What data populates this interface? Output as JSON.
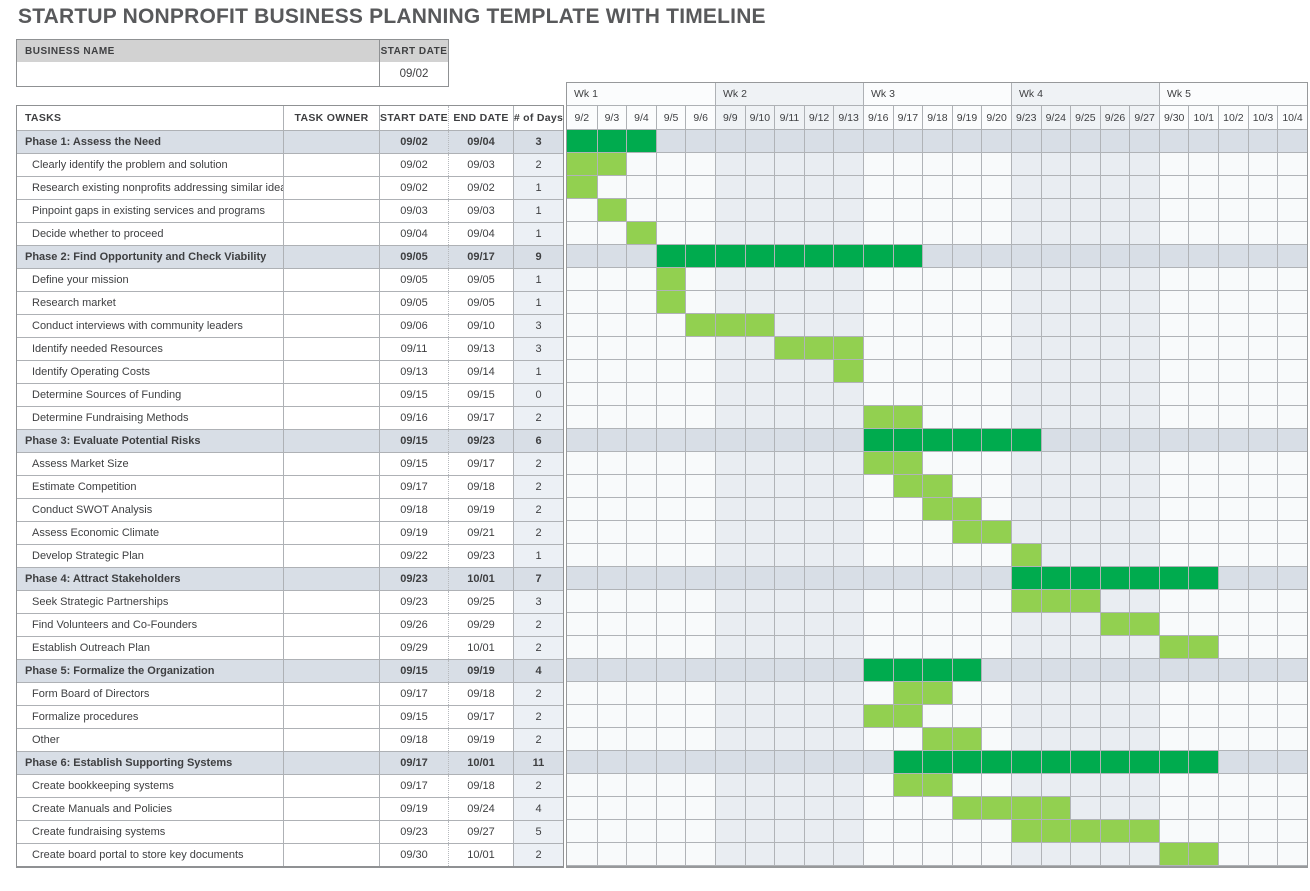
{
  "title": "STARTUP NONPROFIT BUSINESS PLANNING TEMPLATE WITH TIMELINE",
  "business": {
    "name_label": "BUSINESS NAME",
    "name_value": "",
    "start_date_label": "START DATE",
    "start_date_value": "09/02"
  },
  "columns": {
    "tasks": "TASKS",
    "owner": "TASK OWNER",
    "start": "START DATE",
    "end": "END DATE",
    "days": "# of Days"
  },
  "colors": {
    "phase_bar": "#00AB4E",
    "task_bar": "#92D050",
    "phase_row_bg": "#D8DEE6",
    "alt_week_bg": "#E9EDF2",
    "plain_week_bg": "#F8FAFB"
  },
  "gantt": {
    "weeks": [
      {
        "label": "Wk 1",
        "days": [
          "9/2",
          "9/3",
          "9/4",
          "9/5",
          "9/6"
        ]
      },
      {
        "label": "Wk 2",
        "days": [
          "9/9",
          "9/10",
          "9/11",
          "9/12",
          "9/13"
        ]
      },
      {
        "label": "Wk 3",
        "days": [
          "9/16",
          "9/17",
          "9/18",
          "9/19",
          "9/20"
        ]
      },
      {
        "label": "Wk 4",
        "days": [
          "9/23",
          "9/24",
          "9/25",
          "9/26",
          "9/27"
        ]
      },
      {
        "label": "Wk 5",
        "days": [
          "9/30",
          "10/1",
          "10/2",
          "10/3",
          "10/4"
        ]
      }
    ]
  },
  "rows": [
    {
      "type": "phase",
      "task": "Phase 1: Assess the Need",
      "owner": "",
      "start": "09/02",
      "end": "09/04",
      "days": "3",
      "bar": [
        0,
        3
      ]
    },
    {
      "type": "task",
      "task": "Clearly identify the problem and solution",
      "owner": "",
      "start": "09/02",
      "end": "09/03",
      "days": "2",
      "bar": [
        0,
        2
      ]
    },
    {
      "type": "task",
      "task": "Research existing nonprofits addressing similar idea",
      "owner": "",
      "start": "09/02",
      "end": "09/02",
      "days": "1",
      "bar": [
        0,
        1
      ]
    },
    {
      "type": "task",
      "task": "Pinpoint gaps in existing services and programs",
      "owner": "",
      "start": "09/03",
      "end": "09/03",
      "days": "1",
      "bar": [
        1,
        1
      ]
    },
    {
      "type": "task",
      "task": "Decide whether to proceed",
      "owner": "",
      "start": "09/04",
      "end": "09/04",
      "days": "1",
      "bar": [
        2,
        1
      ]
    },
    {
      "type": "phase",
      "task": "Phase 2: Find Opportunity and Check Viability",
      "owner": "",
      "start": "09/05",
      "end": "09/17",
      "days": "9",
      "bar": [
        3,
        9
      ]
    },
    {
      "type": "task",
      "task": "Define your mission",
      "owner": "",
      "start": "09/05",
      "end": "09/05",
      "days": "1",
      "bar": [
        3,
        1
      ]
    },
    {
      "type": "task",
      "task": "Research market",
      "owner": "",
      "start": "09/05",
      "end": "09/05",
      "days": "1",
      "bar": [
        3,
        1
      ]
    },
    {
      "type": "task",
      "task": "Conduct interviews with community leaders",
      "owner": "",
      "start": "09/06",
      "end": "09/10",
      "days": "3",
      "bar": [
        4,
        3
      ]
    },
    {
      "type": "task",
      "task": "Identify needed Resources",
      "owner": "",
      "start": "09/11",
      "end": "09/13",
      "days": "3",
      "bar": [
        7,
        3
      ]
    },
    {
      "type": "task",
      "task": "Identify Operating Costs",
      "owner": "",
      "start": "09/13",
      "end": "09/14",
      "days": "1",
      "bar": [
        9,
        1
      ]
    },
    {
      "type": "task",
      "task": "Determine Sources of Funding",
      "owner": "",
      "start": "09/15",
      "end": "09/15",
      "days": "0",
      "bar": null
    },
    {
      "type": "task",
      "task": "Determine Fundraising Methods",
      "owner": "",
      "start": "09/16",
      "end": "09/17",
      "days": "2",
      "bar": [
        10,
        2
      ]
    },
    {
      "type": "phase",
      "task": "Phase 3: Evaluate Potential Risks",
      "owner": "",
      "start": "09/15",
      "end": "09/23",
      "days": "6",
      "bar": [
        10,
        6
      ]
    },
    {
      "type": "task",
      "task": "Assess Market Size",
      "owner": "",
      "start": "09/15",
      "end": "09/17",
      "days": "2",
      "bar": [
        10,
        2
      ]
    },
    {
      "type": "task",
      "task": "Estimate Competition",
      "owner": "",
      "start": "09/17",
      "end": "09/18",
      "days": "2",
      "bar": [
        11,
        2
      ]
    },
    {
      "type": "task",
      "task": "Conduct SWOT Analysis",
      "owner": "",
      "start": "09/18",
      "end": "09/19",
      "days": "2",
      "bar": [
        12,
        2
      ]
    },
    {
      "type": "task",
      "task": "Assess Economic Climate",
      "owner": "",
      "start": "09/19",
      "end": "09/21",
      "days": "2",
      "bar": [
        13,
        2
      ]
    },
    {
      "type": "task",
      "task": "Develop Strategic Plan",
      "owner": "",
      "start": "09/22",
      "end": "09/23",
      "days": "1",
      "bar": [
        15,
        1
      ]
    },
    {
      "type": "phase",
      "task": "Phase 4: Attract Stakeholders",
      "owner": "",
      "start": "09/23",
      "end": "10/01",
      "days": "7",
      "bar": [
        15,
        7
      ]
    },
    {
      "type": "task",
      "task": "Seek Strategic Partnerships",
      "owner": "",
      "start": "09/23",
      "end": "09/25",
      "days": "3",
      "bar": [
        15,
        3
      ]
    },
    {
      "type": "task",
      "task": "Find Volunteers and Co-Founders",
      "owner": "",
      "start": "09/26",
      "end": "09/29",
      "days": "2",
      "bar": [
        18,
        2
      ]
    },
    {
      "type": "task",
      "task": "Establish Outreach Plan",
      "owner": "",
      "start": "09/29",
      "end": "10/01",
      "days": "2",
      "bar": [
        20,
        2
      ]
    },
    {
      "type": "phase",
      "task": "Phase 5: Formalize the Organization",
      "owner": "",
      "start": "09/15",
      "end": "09/19",
      "days": "4",
      "bar": [
        10,
        4
      ]
    },
    {
      "type": "task",
      "task": "Form Board of Directors",
      "owner": "",
      "start": "09/17",
      "end": "09/18",
      "days": "2",
      "bar": [
        11,
        2
      ]
    },
    {
      "type": "task",
      "task": "Formalize procedures",
      "owner": "",
      "start": "09/15",
      "end": "09/17",
      "days": "2",
      "bar": [
        10,
        2
      ]
    },
    {
      "type": "task",
      "task": "Other",
      "owner": "",
      "start": "09/18",
      "end": "09/19",
      "days": "2",
      "bar": [
        12,
        2
      ]
    },
    {
      "type": "phase",
      "task": "Phase 6: Establish Supporting Systems",
      "owner": "",
      "start": "09/17",
      "end": "10/01",
      "days": "11",
      "bar": [
        11,
        11
      ]
    },
    {
      "type": "task",
      "task": "Create bookkeeping systems",
      "owner": "",
      "start": "09/17",
      "end": "09/18",
      "days": "2",
      "bar": [
        11,
        2
      ]
    },
    {
      "type": "task",
      "task": "Create Manuals and Policies",
      "owner": "",
      "start": "09/19",
      "end": "09/24",
      "days": "4",
      "bar": [
        13,
        4
      ]
    },
    {
      "type": "task",
      "task": "Create fundraising systems",
      "owner": "",
      "start": "09/23",
      "end": "09/27",
      "days": "5",
      "bar": [
        15,
        5
      ]
    },
    {
      "type": "task",
      "task": "Create board portal to store key documents",
      "owner": "",
      "start": "09/30",
      "end": "10/01",
      "days": "2",
      "bar": [
        20,
        2
      ]
    }
  ]
}
